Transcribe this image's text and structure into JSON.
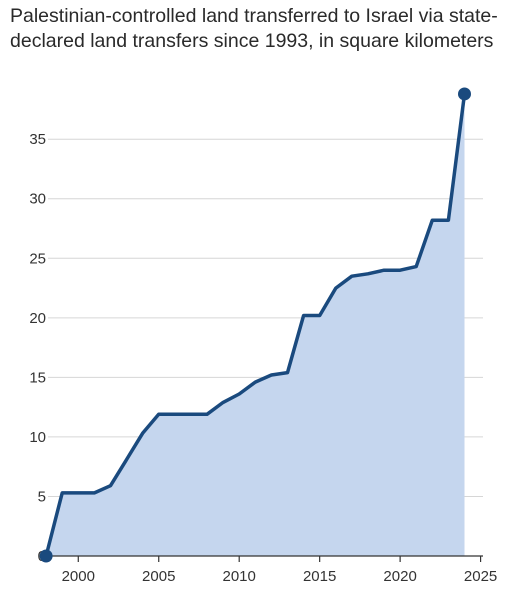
{
  "chart_data": {
    "type": "area",
    "title": "Palestinian-controlled land transferred to Israel via state-declared land transfers since 1993, in square kilometers",
    "xlabel": "",
    "ylabel": "",
    "xlim": [
      1997,
      2025
    ],
    "ylim": [
      0,
      39
    ],
    "grid": true,
    "y_ticks": [
      0,
      5,
      10,
      15,
      20,
      25,
      30,
      35
    ],
    "x_ticks": [
      2000,
      2005,
      2010,
      2015,
      2020,
      2025
    ],
    "x_tick_labels": [
      "2000",
      "2005",
      "2010",
      "2015",
      "2020",
      "2025"
    ],
    "y_tick_labels": [
      "0",
      "5",
      "10",
      "15",
      "20",
      "25",
      "30",
      "35"
    ],
    "line_color": "#1a4a7e",
    "fill_color": "#c5d6ee",
    "endpoint_markers": true,
    "x": [
      1998,
      1999,
      2001,
      2002,
      2003,
      2004,
      2005,
      2006,
      2007,
      2008,
      2009,
      2010,
      2011,
      2012,
      2013,
      2014,
      2015,
      2016,
      2017,
      2018,
      2019,
      2020,
      2021,
      2022,
      2023,
      2024
    ],
    "y": [
      0,
      5.3,
      5.3,
      5.9,
      8.1,
      10.3,
      11.9,
      11.9,
      11.9,
      11.9,
      12.9,
      13.6,
      14.6,
      15.2,
      15.4,
      20.2,
      20.2,
      22.5,
      23.5,
      23.7,
      24.0,
      24.0,
      24.3,
      28.2,
      28.2,
      38.8
    ]
  }
}
